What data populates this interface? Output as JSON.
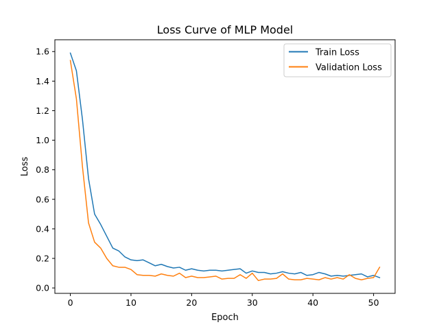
{
  "chart_data": {
    "type": "line",
    "title": "Loss Curve of MLP Model",
    "xlabel": "Epoch",
    "ylabel": "Loss",
    "xlim": [
      -2.55,
      53.55
    ],
    "ylim": [
      -0.0366,
      1.68
    ],
    "xticks": [
      0,
      10,
      20,
      30,
      40,
      50
    ],
    "yticks": [
      0.0,
      0.2,
      0.4,
      0.6,
      0.8,
      1.0,
      1.2,
      1.4,
      1.6
    ],
    "xtick_labels": [
      "0",
      "10",
      "20",
      "30",
      "40",
      "50"
    ],
    "ytick_labels": [
      "0.0",
      "0.2",
      "0.4",
      "0.6",
      "0.8",
      "1.0",
      "1.2",
      "1.4",
      "1.6"
    ],
    "grid": false,
    "legend_position": "upper right",
    "x": [
      0,
      1,
      2,
      3,
      4,
      5,
      6,
      7,
      8,
      9,
      10,
      11,
      12,
      13,
      14,
      15,
      16,
      17,
      18,
      19,
      20,
      21,
      22,
      23,
      24,
      25,
      26,
      27,
      28,
      29,
      30,
      31,
      32,
      33,
      34,
      35,
      36,
      37,
      38,
      39,
      40,
      41,
      42,
      43,
      44,
      45,
      46,
      47,
      48,
      49,
      50,
      51
    ],
    "series": [
      {
        "name": "Train Loss",
        "color": "#1f77b4",
        "values": [
          1.59,
          1.47,
          1.14,
          0.74,
          0.5,
          0.43,
          0.35,
          0.27,
          0.25,
          0.21,
          0.19,
          0.185,
          0.19,
          0.17,
          0.15,
          0.16,
          0.145,
          0.135,
          0.14,
          0.12,
          0.13,
          0.12,
          0.115,
          0.12,
          0.12,
          0.115,
          0.12,
          0.125,
          0.13,
          0.1,
          0.115,
          0.105,
          0.105,
          0.095,
          0.1,
          0.11,
          0.1,
          0.095,
          0.105,
          0.085,
          0.09,
          0.105,
          0.095,
          0.08,
          0.085,
          0.08,
          0.085,
          0.09,
          0.095,
          0.075,
          0.085,
          0.07
        ]
      },
      {
        "name": "Validation Loss",
        "color": "#ff7f0e",
        "values": [
          1.54,
          1.28,
          0.82,
          0.44,
          0.31,
          0.27,
          0.2,
          0.15,
          0.14,
          0.14,
          0.125,
          0.09,
          0.085,
          0.085,
          0.08,
          0.095,
          0.085,
          0.08,
          0.1,
          0.07,
          0.08,
          0.07,
          0.07,
          0.075,
          0.08,
          0.06,
          0.065,
          0.065,
          0.09,
          0.065,
          0.1,
          0.05,
          0.06,
          0.06,
          0.065,
          0.095,
          0.06,
          0.055,
          0.055,
          0.065,
          0.06,
          0.055,
          0.07,
          0.06,
          0.07,
          0.06,
          0.09,
          0.065,
          0.055,
          0.065,
          0.07,
          0.14
        ]
      }
    ]
  }
}
